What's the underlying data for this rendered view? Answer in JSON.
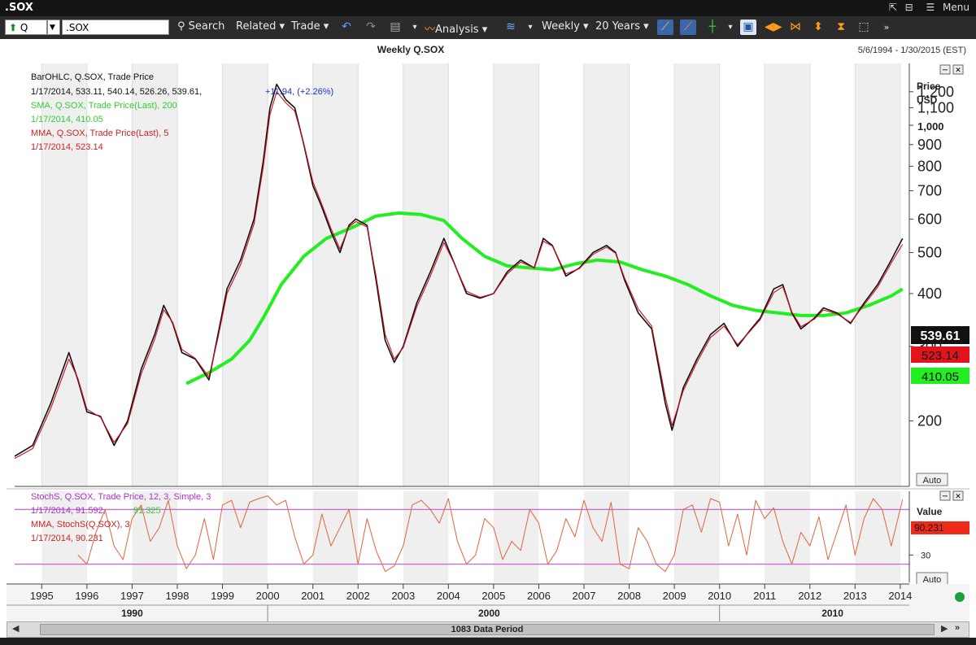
{
  "window": {
    "title": ".SOX",
    "controls": {
      "menu_label": "Menu"
    }
  },
  "toolbar": {
    "market_value": "Q",
    "symbol_value": ".SOX",
    "search_label": "Search",
    "related_label": "Related",
    "trade_label": "Trade",
    "analysis_label": "Analysis",
    "interval_label": "Weekly",
    "range_label": "20 Years"
  },
  "chart_header": {
    "title": "Weekly Q.SOX",
    "date_range": "5/6/1994 - 1/30/2015 (EST)"
  },
  "price_panel": {
    "legend": {
      "bar_series_name": "BarOHLC, Q.SOX, Trade Price",
      "bar_values": "1/17/2014, 533.11, 540.14, 526.26, 539.61,",
      "bar_change": "+11.94, (+2.26%)",
      "sma_name": "SMA, Q.SOX, Trade Price(Last),  200",
      "sma_value": "1/17/2014, 410.05",
      "mma_name": "MMA, Q.SOX, Trade Price(Last),  5",
      "mma_value": "1/17/2014, 523.14"
    },
    "axis_title_1": "Price",
    "axis_title_2": "USD",
    "last_price": "539.61",
    "last_mma": "523.14",
    "last_sma": "410.05",
    "auto_label": "Auto"
  },
  "stoch_panel": {
    "legend": {
      "stoch_name": "StochS, Q.SOX, Trade Price,  12, 3, Simple,  3",
      "stoch_value_date": "1/17/2014, 91.592,",
      "stoch_value_2": "91.325",
      "mma_name": "MMA, StochS(Q.SOX),  3",
      "mma_value": "1/17/2014, 90.231"
    },
    "axis_title": "Value",
    "last_value": "90.231",
    "auto_label": "Auto"
  },
  "scroll": {
    "thumb_label": "1083 Data Period"
  },
  "colors": {
    "price": "#111111",
    "mma": "#d01020",
    "sma": "#22ee22",
    "stoch": "#e0643c",
    "stoch_ref": "#cc66dd",
    "legend_blue": "#1a33cc",
    "legend_green": "#33cc33",
    "legend_red": "#cc2222",
    "legend_purple": "#aa33cc"
  },
  "chart_data": [
    {
      "type": "line",
      "title": "Weekly Q.SOX",
      "ylabel": "Price USD",
      "scale": "log",
      "ylim": [
        140,
        1400
      ],
      "xlim": [
        1994.4,
        2014.2
      ],
      "yticks": [
        200,
        300,
        400,
        500,
        600,
        700,
        800,
        900,
        1000,
        1100,
        1200
      ],
      "ytick_labels": [
        "200",
        "300",
        "400",
        "500",
        "600",
        "700",
        "800",
        "900",
        "1,000",
        "1,100",
        "1,200"
      ],
      "xticks": [
        1995,
        1996,
        1997,
        1998,
        1999,
        2000,
        2001,
        2002,
        2003,
        2004,
        2005,
        2006,
        2007,
        2008,
        2009,
        2010,
        2011,
        2012,
        2013,
        2014
      ],
      "decade_labels": [
        {
          "x": 1997.0,
          "label": "1990"
        },
        {
          "x": 2004.9,
          "label": "2000"
        },
        {
          "x": 2012.5,
          "label": "2010"
        }
      ],
      "grid": "vertical",
      "series": [
        {
          "name": "BarOHLC, Q.SOX, Trade Price",
          "x": [
            1994.4,
            1994.8,
            1995.2,
            1995.6,
            1995.8,
            1996.0,
            1996.3,
            1996.6,
            1996.9,
            1997.2,
            1997.5,
            1997.7,
            1997.9,
            1998.1,
            1998.4,
            1998.7,
            1998.9,
            1999.1,
            1999.4,
            1999.7,
            1999.9,
            2000.05,
            2000.2,
            2000.4,
            2000.6,
            2000.8,
            2001.0,
            2001.2,
            2001.4,
            2001.6,
            2001.8,
            2001.95,
            2002.2,
            2002.4,
            2002.6,
            2002.8,
            2003.0,
            2003.3,
            2003.6,
            2003.9,
            2004.1,
            2004.4,
            2004.7,
            2005.0,
            2005.3,
            2005.6,
            2005.9,
            2006.1,
            2006.3,
            2006.6,
            2006.9,
            2007.2,
            2007.5,
            2007.7,
            2007.9,
            2008.2,
            2008.5,
            2008.8,
            2008.95,
            2009.2,
            2009.5,
            2009.8,
            2010.1,
            2010.4,
            2010.7,
            2010.9,
            2011.2,
            2011.4,
            2011.6,
            2011.8,
            2012.1,
            2012.3,
            2012.6,
            2012.9,
            2013.2,
            2013.5,
            2013.8,
            2014.05
          ],
          "values": [
            165,
            175,
            220,
            290,
            250,
            210,
            205,
            175,
            200,
            265,
            320,
            375,
            340,
            290,
            280,
            250,
            320,
            410,
            480,
            600,
            820,
            1100,
            1250,
            1150,
            1100,
            900,
            720,
            640,
            560,
            500,
            580,
            600,
            580,
            430,
            310,
            275,
            300,
            380,
            450,
            540,
            480,
            400,
            390,
            400,
            450,
            480,
            460,
            540,
            520,
            440,
            460,
            500,
            520,
            500,
            430,
            360,
            330,
            220,
            190,
            240,
            280,
            320,
            340,
            300,
            330,
            350,
            410,
            420,
            360,
            330,
            350,
            370,
            360,
            340,
            380,
            420,
            480,
            540
          ]
        },
        {
          "name": "SMA, Q.SOX, Trade Price(Last),  200",
          "x": [
            1998.2,
            1998.7,
            1999.2,
            1999.6,
            1999.9,
            2000.3,
            2000.8,
            2001.3,
            2001.9,
            2002.4,
            2002.9,
            2003.4,
            2003.9,
            2004.3,
            2004.8,
            2005.3,
            2005.8,
            2006.3,
            2006.8,
            2007.3,
            2007.8,
            2008.3,
            2008.8,
            2009.3,
            2009.8,
            2010.3,
            2010.8,
            2011.3,
            2011.8,
            2012.3,
            2012.8,
            2013.3,
            2013.8,
            2014.05
          ],
          "values": [
            245,
            260,
            280,
            310,
            350,
            420,
            490,
            540,
            575,
            610,
            620,
            615,
            595,
            540,
            490,
            465,
            460,
            455,
            470,
            480,
            475,
            455,
            440,
            420,
            395,
            375,
            365,
            360,
            355,
            355,
            360,
            375,
            395,
            410
          ]
        },
        {
          "name": "MMA, Q.SOX, Trade Price(Last),  5",
          "x": [
            1994.4,
            1994.8,
            1995.2,
            1995.6,
            1995.8,
            1996.0,
            1996.3,
            1996.6,
            1996.9,
            1997.2,
            1997.5,
            1997.7,
            1997.9,
            1998.1,
            1998.4,
            1998.7,
            1998.9,
            1999.1,
            1999.4,
            1999.7,
            1999.9,
            2000.05,
            2000.2,
            2000.4,
            2000.6,
            2000.8,
            2001.0,
            2001.2,
            2001.4,
            2001.6,
            2001.8,
            2001.95,
            2002.2,
            2002.4,
            2002.6,
            2002.8,
            2003.0,
            2003.3,
            2003.6,
            2003.9,
            2004.1,
            2004.4,
            2004.7,
            2005.0,
            2005.3,
            2005.6,
            2005.9,
            2006.1,
            2006.3,
            2006.6,
            2006.9,
            2007.2,
            2007.5,
            2007.7,
            2007.9,
            2008.2,
            2008.5,
            2008.8,
            2008.95,
            2009.2,
            2009.5,
            2009.8,
            2010.1,
            2010.4,
            2010.7,
            2010.9,
            2011.2,
            2011.4,
            2011.6,
            2011.8,
            2012.1,
            2012.3,
            2012.6,
            2012.9,
            2013.2,
            2013.5,
            2013.8,
            2014.05
          ],
          "values": [
            163,
            172,
            214,
            280,
            252,
            213,
            204,
            178,
            197,
            258,
            312,
            366,
            342,
            295,
            281,
            254,
            314,
            400,
            468,
            585,
            795,
            1060,
            1200,
            1130,
            1080,
            905,
            735,
            650,
            570,
            510,
            575,
            592,
            575,
            440,
            320,
            280,
            298,
            372,
            440,
            528,
            478,
            405,
            392,
            400,
            445,
            475,
            460,
            532,
            518,
            445,
            458,
            495,
            515,
            498,
            435,
            368,
            335,
            228,
            195,
            236,
            275,
            315,
            335,
            303,
            328,
            347,
            402,
            415,
            362,
            334,
            348,
            366,
            358,
            342,
            376,
            414,
            472,
            523
          ]
        }
      ]
    },
    {
      "type": "line",
      "title": "StochS, Q.SOX, Trade Price,  12, 3, Simple,  3",
      "ylabel": "Value",
      "ylim": [
        0,
        100
      ],
      "xlim": [
        1994.4,
        2014.2
      ],
      "yticks": [
        30
      ],
      "reference_lines": [
        20,
        80
      ],
      "series": [
        {
          "name": "StochS / MMA, StochS(Q.SOX),  3",
          "x": [
            1995.8,
            1996.0,
            1996.2,
            1996.4,
            1996.6,
            1996.8,
            1997.0,
            1997.2,
            1997.4,
            1997.6,
            1997.8,
            1998.0,
            1998.2,
            1998.4,
            1998.6,
            1998.8,
            1999.0,
            1999.2,
            1999.4,
            1999.6,
            1999.8,
            2000.0,
            2000.2,
            2000.4,
            2000.6,
            2000.8,
            2001.0,
            2001.2,
            2001.4,
            2001.6,
            2001.8,
            2002.0,
            2002.2,
            2002.4,
            2002.6,
            2002.8,
            2003.0,
            2003.2,
            2003.4,
            2003.6,
            2003.8,
            2004.0,
            2004.2,
            2004.4,
            2004.6,
            2004.8,
            2005.0,
            2005.2,
            2005.4,
            2005.6,
            2005.8,
            2006.0,
            2006.2,
            2006.4,
            2006.6,
            2006.8,
            2007.0,
            2007.2,
            2007.4,
            2007.6,
            2007.8,
            2008.0,
            2008.2,
            2008.4,
            2008.6,
            2008.8,
            2009.0,
            2009.2,
            2009.4,
            2009.6,
            2009.8,
            2010.0,
            2010.2,
            2010.4,
            2010.6,
            2010.8,
            2011.0,
            2011.2,
            2011.4,
            2011.6,
            2011.8,
            2012.0,
            2012.2,
            2012.4,
            2012.6,
            2012.8,
            2013.0,
            2013.2,
            2013.4,
            2013.6,
            2013.8,
            2014.05
          ],
          "values": [
            30,
            20,
            55,
            80,
            40,
            25,
            70,
            85,
            45,
            60,
            90,
            40,
            15,
            30,
            70,
            25,
            85,
            90,
            60,
            88,
            92,
            95,
            85,
            90,
            50,
            20,
            30,
            75,
            40,
            60,
            80,
            20,
            70,
            35,
            12,
            18,
            40,
            85,
            90,
            80,
            65,
            92,
            45,
            20,
            30,
            70,
            60,
            25,
            45,
            35,
            80,
            65,
            20,
            35,
            70,
            50,
            90,
            60,
            45,
            88,
            20,
            15,
            60,
            45,
            20,
            12,
            30,
            80,
            85,
            55,
            92,
            88,
            40,
            75,
            30,
            90,
            70,
            82,
            45,
            20,
            55,
            40,
            72,
            25,
            55,
            85,
            30,
            70,
            92,
            80,
            40,
            91
          ]
        }
      ]
    }
  ]
}
